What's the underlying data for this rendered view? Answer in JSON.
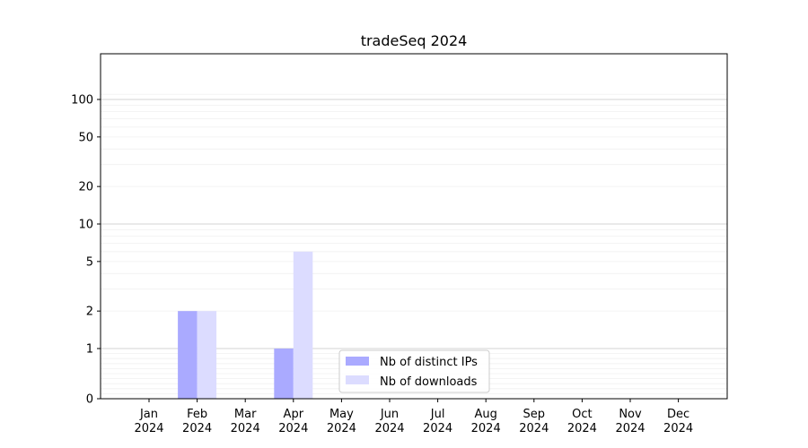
{
  "chart_data": {
    "type": "bar",
    "title": "tradeSeq 2024",
    "xlabel": "",
    "ylabel": "",
    "yscale": "symlog",
    "ylim": [
      0,
      120
    ],
    "yticks": [
      {
        "value": 0,
        "label": "0"
      },
      {
        "value": 1,
        "label": "1"
      },
      {
        "value": 2,
        "label": "2"
      },
      {
        "value": 5,
        "label": "5"
      },
      {
        "value": 10,
        "label": "10"
      },
      {
        "value": 20,
        "label": "20"
      },
      {
        "value": 50,
        "label": "50"
      },
      {
        "value": 100,
        "label": "100"
      }
    ],
    "categories": [
      {
        "month": "Jan",
        "year": "2024"
      },
      {
        "month": "Feb",
        "year": "2024"
      },
      {
        "month": "Mar",
        "year": "2024"
      },
      {
        "month": "Apr",
        "year": "2024"
      },
      {
        "month": "May",
        "year": "2024"
      },
      {
        "month": "Jun",
        "year": "2024"
      },
      {
        "month": "Jul",
        "year": "2024"
      },
      {
        "month": "Aug",
        "year": "2024"
      },
      {
        "month": "Sep",
        "year": "2024"
      },
      {
        "month": "Oct",
        "year": "2024"
      },
      {
        "month": "Nov",
        "year": "2024"
      },
      {
        "month": "Dec",
        "year": "2024"
      }
    ],
    "series": [
      {
        "name": "Nb of distinct IPs",
        "color": "#aaaaff",
        "values": [
          0,
          2,
          0,
          1,
          0,
          0,
          0,
          0,
          0,
          0,
          0,
          0
        ]
      },
      {
        "name": "Nb of downloads",
        "color": "#dcdcff",
        "values": [
          0,
          2,
          0,
          6,
          0,
          0,
          0,
          0,
          0,
          0,
          0,
          0
        ]
      }
    ],
    "grid": true,
    "legend_position": "bottom-center"
  }
}
